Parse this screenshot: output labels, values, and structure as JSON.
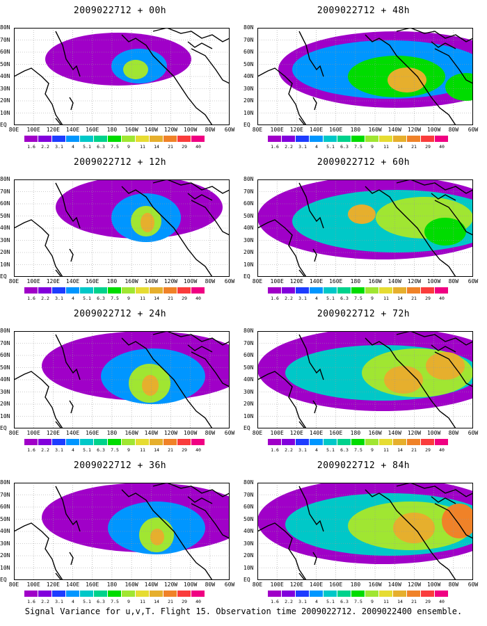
{
  "caption": "Signal Variance for u,v,T. Flight 15. Observation time 2009022712. 2009022400 ensemble.",
  "lat_labels": [
    "80N",
    "70N",
    "60N",
    "50N",
    "40N",
    "30N",
    "20N",
    "10N",
    "EQ"
  ],
  "lon_labels": [
    "80E",
    "100E",
    "120E",
    "140E",
    "160E",
    "180",
    "160W",
    "140W",
    "120W",
    "100W",
    "80W",
    "60W"
  ],
  "colorbar": {
    "levels": [
      "1.6",
      "2.2",
      "3.1",
      "4",
      "5.1",
      "6.3",
      "7.5",
      "9",
      "11",
      "14",
      "21",
      "29",
      "40"
    ],
    "colors": [
      "#a000c8",
      "#8200dc",
      "#1e3cff",
      "#0096ff",
      "#00c8c8",
      "#00d28c",
      "#00dc00",
      "#a0e632",
      "#e6dc32",
      "#e6af2d",
      "#f08228",
      "#fa3c3c",
      "#f00082"
    ]
  },
  "panels": [
    {
      "title": "2009022712 + 00h",
      "lead_hours": 0
    },
    {
      "title": "2009022712 + 48h",
      "lead_hours": 48
    },
    {
      "title": "2009022712 + 12h",
      "lead_hours": 12
    },
    {
      "title": "2009022712 + 60h",
      "lead_hours": 60
    },
    {
      "title": "2009022712 + 24h",
      "lead_hours": 24
    },
    {
      "title": "2009022712 + 72h",
      "lead_hours": 72
    },
    {
      "title": "2009022712 + 36h",
      "lead_hours": 36
    },
    {
      "title": "2009022712 + 84h",
      "lead_hours": 84
    }
  ]
}
